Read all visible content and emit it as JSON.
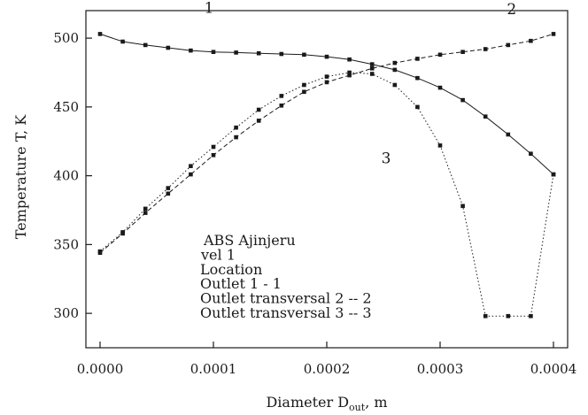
{
  "chart_data": {
    "type": "line",
    "xlabel": "Diameter D",
    "xlabel_sub": "out",
    "xlabel_unit": ", m",
    "ylabel": "Temperature T, K",
    "xlim": [
      0.0,
      0.0004
    ],
    "ylim": [
      275,
      520
    ],
    "x_ticks": [
      0.0,
      0.0001,
      0.0002,
      0.0003,
      0.0004
    ],
    "x_tick_labels": [
      "0.0000",
      "0.0001",
      "0.0002",
      "0.0003",
      "0.0004"
    ],
    "y_ticks": [
      300,
      350,
      400,
      450,
      500
    ],
    "y_tick_labels": [
      "300",
      "350",
      "400",
      "450",
      "500"
    ],
    "grid": false,
    "legend": {
      "placement": "bottom-center",
      "lines": [
        "ABS Ajinjeru",
        "vel 1",
        "Location",
        "Outlet 1 - 1",
        "Outlet transversal 2 -- 2",
        "Outlet transversal 3 -- 3"
      ]
    },
    "series": [
      {
        "label": "1",
        "style": "solid",
        "x": [
          0.0,
          2e-05,
          4e-05,
          6e-05,
          8e-05,
          0.0001,
          0.00012,
          0.00014,
          0.00016,
          0.00018,
          0.0002,
          0.00022,
          0.00024,
          0.00026,
          0.00028,
          0.0003,
          0.00032,
          0.00034,
          0.00036,
          0.00038,
          0.0004
        ],
        "y": [
          503,
          497.5,
          495,
          493,
          491,
          490,
          489.5,
          489,
          488.5,
          488,
          486.5,
          484.5,
          481,
          477,
          471,
          464,
          455,
          443,
          430,
          416,
          401
        ]
      },
      {
        "label": "2",
        "style": "dashed",
        "x": [
          0.0,
          2e-05,
          4e-05,
          6e-05,
          8e-05,
          0.0001,
          0.00012,
          0.00014,
          0.00016,
          0.00018,
          0.0002,
          0.00022,
          0.00024,
          0.00026,
          0.00028,
          0.0003,
          0.00032,
          0.00034,
          0.00036,
          0.00038,
          0.0004
        ],
        "y": [
          344,
          358,
          373,
          387,
          401,
          415,
          428,
          440,
          451,
          461,
          468,
          473,
          478,
          482,
          485,
          488,
          490,
          492,
          495,
          498,
          503
        ]
      },
      {
        "label": "3",
        "style": "dotted",
        "x": [
          0.0,
          2e-05,
          4e-05,
          6e-05,
          8e-05,
          0.0001,
          0.00012,
          0.00014,
          0.00016,
          0.00018,
          0.0002,
          0.00022,
          0.00024,
          0.00026,
          0.00028,
          0.0003,
          0.00032,
          0.00034,
          0.00036,
          0.00038,
          0.0004
        ],
        "y": [
          345,
          359,
          376,
          391,
          407,
          421,
          435,
          448,
          458,
          466,
          472,
          475,
          474,
          466,
          450,
          422,
          378,
          298,
          298,
          298,
          401
        ]
      }
    ]
  }
}
